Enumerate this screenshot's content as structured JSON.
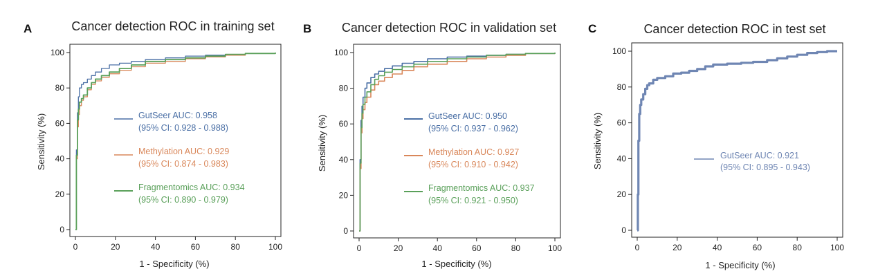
{
  "chart_data": [
    {
      "type": "line",
      "panel_letter": "A",
      "title": "Cancer detection ROC in training set",
      "xlabel": "1 - Specificity (%)",
      "ylabel": "Sensitivity (%)",
      "xlim": [
        0,
        100
      ],
      "ylim": [
        0,
        100
      ],
      "xticks": [
        0,
        20,
        40,
        60,
        80,
        100
      ],
      "yticks": [
        0,
        20,
        40,
        60,
        80,
        100
      ],
      "grid": false,
      "legend_position": "center",
      "series": [
        {
          "name": "GutSeer AUC: 0.958",
          "ci": "(95% CI: 0.928 - 0.988)",
          "color": "#4a6fa5",
          "x": [
            0,
            0.5,
            1,
            1.5,
            2,
            3,
            4,
            6,
            8,
            10,
            13,
            17,
            22,
            28,
            35,
            45,
            55,
            65,
            75,
            85,
            100
          ],
          "y": [
            0,
            45,
            66,
            75,
            80,
            82,
            83,
            85,
            87,
            89,
            91,
            93,
            94,
            95,
            96,
            97,
            98,
            98.5,
            99,
            99.5,
            100
          ]
        },
        {
          "name": "Methylation AUC: 0.929",
          "ci": "(95% CI: 0.874 - 0.983)",
          "color": "#d9875a",
          "x": [
            0,
            0.5,
            1,
            1.5,
            2,
            3,
            4,
            6,
            8,
            10,
            13,
            17,
            22,
            28,
            35,
            45,
            55,
            65,
            75,
            85,
            100
          ],
          "y": [
            0,
            40,
            58,
            65,
            70,
            73,
            75,
            79,
            82,
            84,
            86,
            88,
            90,
            92,
            94,
            95,
            96.5,
            97.5,
            98.5,
            99.5,
            100
          ]
        },
        {
          "name": "Fragmentomics AUC: 0.934",
          "ci": "(95% CI: 0.890 - 0.979)",
          "color": "#5aa05a",
          "x": [
            0,
            0.5,
            1,
            1.5,
            2,
            3,
            4,
            6,
            8,
            10,
            13,
            17,
            22,
            28,
            35,
            45,
            55,
            65,
            75,
            85,
            100
          ],
          "y": [
            0,
            42,
            62,
            68,
            72,
            74,
            76,
            80,
            83,
            85,
            87,
            89,
            91,
            93,
            95,
            96,
            97,
            98,
            99,
            99.5,
            100
          ]
        }
      ]
    },
    {
      "type": "line",
      "panel_letter": "B",
      "title": "Cancer detection ROC in validation set",
      "xlabel": "1 - Specificity (%)",
      "ylabel": "Sensitivity (%)",
      "xlim": [
        0,
        100
      ],
      "ylim": [
        0,
        100
      ],
      "xticks": [
        0,
        20,
        40,
        60,
        80,
        100
      ],
      "yticks": [
        0,
        20,
        40,
        60,
        80,
        100
      ],
      "grid": false,
      "legend_position": "center",
      "series": [
        {
          "name": "GutSeer AUC: 0.950",
          "ci": "(95% CI: 0.937 - 0.962)",
          "color": "#4a6fa5",
          "x": [
            0,
            0.5,
            1,
            1.5,
            2,
            3,
            4,
            6,
            8,
            10,
            13,
            17,
            22,
            28,
            35,
            45,
            55,
            65,
            75,
            85,
            100
          ],
          "y": [
            0,
            40,
            62,
            70,
            75,
            80,
            83,
            86,
            88,
            89.5,
            91,
            92.5,
            94,
            95,
            96.5,
            97.5,
            98,
            98.5,
            99,
            99.5,
            100
          ]
        },
        {
          "name": "Methylation AUC: 0.927",
          "ci": "(95% CI: 0.910 - 0.942)",
          "color": "#d9875a",
          "x": [
            0,
            0.5,
            1,
            1.5,
            2,
            3,
            4,
            6,
            8,
            10,
            13,
            17,
            22,
            28,
            35,
            45,
            55,
            65,
            75,
            85,
            100
          ],
          "y": [
            0,
            35,
            55,
            63,
            68,
            72,
            75,
            79,
            82,
            84,
            86,
            88,
            90,
            92,
            93.5,
            95,
            96.5,
            97.5,
            98.5,
            99.5,
            100
          ]
        },
        {
          "name": "Fragmentomics AUC: 0.937",
          "ci": "(95% CI: 0.921 - 0.950)",
          "color": "#5aa05a",
          "x": [
            0,
            0.5,
            1,
            1.5,
            2,
            3,
            4,
            6,
            8,
            10,
            13,
            17,
            22,
            28,
            35,
            45,
            55,
            65,
            75,
            85,
            100
          ],
          "y": [
            0,
            38,
            58,
            66,
            71,
            75,
            78,
            82,
            85,
            87,
            89,
            90.5,
            92,
            93.5,
            95,
            96.5,
            97.5,
            98.5,
            99,
            99.5,
            100
          ]
        }
      ]
    },
    {
      "type": "line",
      "panel_letter": "C",
      "title": "Cancer detection ROC in test set",
      "xlabel": "1 - Specificity (%)",
      "ylabel": "Sensitivity (%)",
      "xlim": [
        0,
        100
      ],
      "ylim": [
        0,
        100
      ],
      "xticks": [
        0,
        20,
        40,
        60,
        80,
        100
      ],
      "yticks": [
        0,
        20,
        40,
        60,
        80,
        100
      ],
      "grid": false,
      "legend_position": "center-right",
      "series": [
        {
          "name": "GutSeer AUC: 0.921",
          "ci": "(95% CI: 0.895 - 0.943)",
          "color": "#6f86b3",
          "x": [
            0,
            0.3,
            0.6,
            1,
            1.5,
            2,
            3,
            4,
            5,
            6,
            8,
            10,
            14,
            18,
            22,
            26,
            30,
            34,
            38,
            45,
            52,
            58,
            65,
            70,
            75,
            80,
            85,
            90,
            95,
            100
          ],
          "y": [
            0,
            20,
            50,
            65,
            70,
            73,
            76,
            79,
            81,
            82,
            84,
            85,
            86,
            87.5,
            88,
            89,
            90,
            91.5,
            92.5,
            93,
            93.5,
            94,
            95,
            96,
            97,
            98,
            99,
            99.5,
            100,
            100
          ]
        }
      ]
    }
  ]
}
